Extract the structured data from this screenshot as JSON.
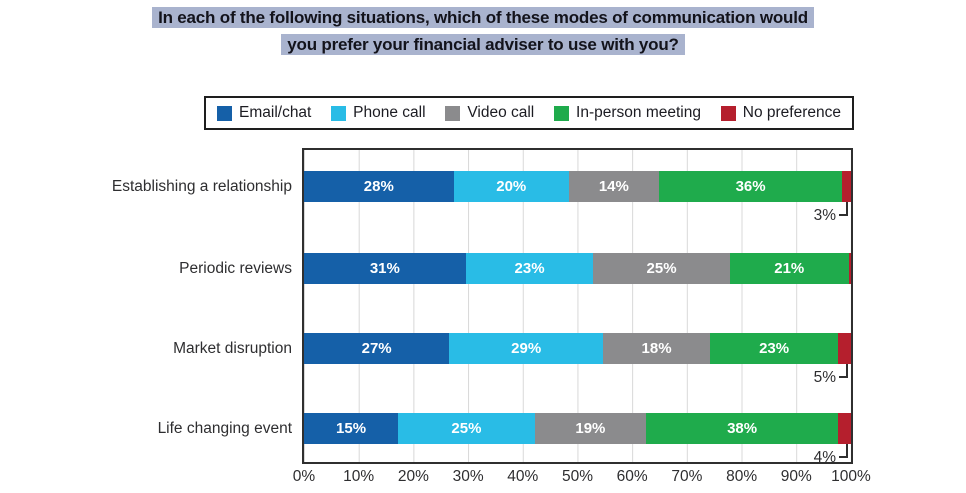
{
  "title_lines": [
    "In each of the following situations, which of these modes of communication would",
    "you prefer your financial adviser to use with you?"
  ],
  "title_highlight_color": "#a9b3ce",
  "chart_data": {
    "type": "bar",
    "orientation": "horizontal",
    "stacked": true,
    "title": "In each of the following situations, which of these modes of communication would you prefer your financial adviser to use with you?",
    "categories": [
      "Establishing a relationship",
      "Periodic reviews",
      "Market disruption",
      "Life changing event"
    ],
    "series": [
      {
        "name": "Email/chat",
        "color": "#1560a8",
        "values": [
          28,
          31,
          27,
          15
        ],
        "label_position": "inside"
      },
      {
        "name": "Phone call",
        "color": "#29bce6",
        "values": [
          20,
          23,
          29,
          25
        ],
        "label_position": "inside"
      },
      {
        "name": "Video call",
        "color": "#8b8b8d",
        "values": [
          14,
          25,
          18,
          19
        ],
        "label_position": "inside"
      },
      {
        "name": "In-person meeting",
        "color": "#1fab4c",
        "values": [
          36,
          21,
          23,
          38
        ],
        "label_position": "inside"
      },
      {
        "name": "No preference",
        "color": "#b51f2d",
        "values": [
          3,
          null,
          5,
          4
        ],
        "label_position": "outside-callout"
      }
    ],
    "x_ticks": [
      "0%",
      "10%",
      "20%",
      "30%",
      "40%",
      "50%",
      "60%",
      "70%",
      "80%",
      "90%",
      "100%"
    ],
    "xlim": [
      0,
      100
    ],
    "grid": "vertical-every-10pct",
    "gridline_color": "#d8d8d8",
    "legend_position": "top",
    "unit": "%"
  }
}
